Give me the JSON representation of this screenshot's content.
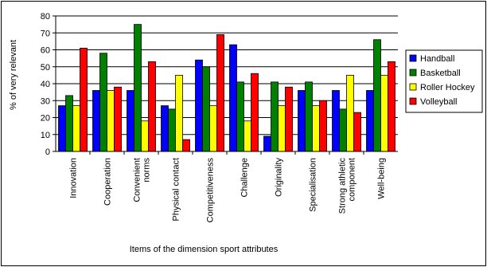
{
  "chart_data": {
    "type": "bar",
    "xlabel": "Items of the dimension sport attributes",
    "ylabel": "% of very relevant",
    "ylim": [
      0,
      80
    ],
    "yticks": [
      0,
      10,
      20,
      30,
      40,
      50,
      60,
      70,
      80
    ],
    "grid": "horizontal",
    "legend_position": "right",
    "categories": [
      "Innovation",
      "Cooperation",
      "Convenient norms",
      "Physical contact",
      "Competitiveness",
      "Challenge",
      "Originality",
      "Specialisation",
      "Strong athletic component",
      "Well-being"
    ],
    "category_lines": [
      [
        "Innovation"
      ],
      [
        "Cooperation"
      ],
      [
        "Convenient",
        "norms"
      ],
      [
        "Physical contact"
      ],
      [
        "Competitiveness"
      ],
      [
        "Challenge"
      ],
      [
        "Originality"
      ],
      [
        "Specialisation"
      ],
      [
        "Strong athletic",
        "component"
      ],
      [
        "Well-being"
      ]
    ],
    "series": [
      {
        "name": "Handball",
        "color": "#0000ff",
        "values": [
          27,
          36,
          36,
          27,
          54,
          63,
          9,
          36,
          36,
          36
        ]
      },
      {
        "name": "Basketball",
        "color": "#008000",
        "values": [
          33,
          58,
          75,
          25,
          50,
          41,
          41,
          41,
          25,
          66
        ]
      },
      {
        "name": "Roller Hockey",
        "color": "#ffff00",
        "values": [
          27,
          36,
          18,
          45,
          27,
          18,
          27,
          27,
          45,
          45
        ]
      },
      {
        "name": "Volleyball",
        "color": "#ff0000",
        "values": [
          61,
          38,
          53,
          7,
          69,
          46,
          38,
          30,
          23,
          53
        ]
      }
    ]
  }
}
